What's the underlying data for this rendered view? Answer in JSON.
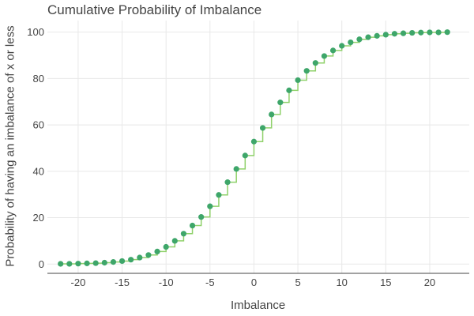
{
  "chart_data": {
    "type": "line",
    "title": "Cumulative Probability of Imbalance",
    "xlabel": "Imbalance",
    "ylabel": "Probability of having an imbalance of x or less",
    "xlim": [
      -23.5,
      24.5
    ],
    "ylim": [
      -4,
      105
    ],
    "x_ticks": [
      -20,
      -15,
      -10,
      -5,
      0,
      5,
      10,
      15,
      20
    ],
    "x_tick_labels": [
      "-20",
      "-15",
      "-10",
      "-5",
      "0",
      "5",
      "10",
      "15",
      "20"
    ],
    "y_ticks": [
      0,
      20,
      40,
      60,
      80,
      100
    ],
    "y_tick_labels": [
      "0",
      "20",
      "40",
      "60",
      "80",
      "100"
    ],
    "grid": true,
    "series": [
      {
        "style": "step",
        "color": "#8fd16a",
        "x": [
          -22,
          -21,
          -20,
          -19,
          -18,
          -17,
          -16,
          -15,
          -14,
          -13,
          -12,
          -11,
          -10,
          -9,
          -8,
          -7,
          -6,
          -5,
          -4,
          -3,
          -2,
          -1,
          0,
          1,
          2,
          3,
          4,
          5,
          6,
          7,
          8,
          9,
          10,
          11,
          12,
          13,
          14,
          15,
          16,
          17,
          18,
          19,
          20,
          21,
          22
        ],
        "values": [
          0.1,
          0.1,
          0.2,
          0.3,
          0.4,
          0.6,
          0.9,
          1.3,
          1.9,
          2.8,
          3.9,
          5.4,
          7.4,
          10.0,
          13.1,
          16.6,
          20.3,
          24.9,
          29.8,
          35.3,
          41.0,
          46.8,
          52.8,
          58.7,
          64.5,
          69.7,
          74.9,
          79.3,
          83.3,
          86.7,
          89.7,
          92.1,
          94.1,
          95.6,
          96.9,
          97.8,
          98.4,
          98.9,
          99.3,
          99.5,
          99.7,
          99.8,
          99.9,
          99.9,
          100.0
        ]
      },
      {
        "style": "markers",
        "color": "#3ea66a",
        "x": [
          -22,
          -21,
          -20,
          -19,
          -18,
          -17,
          -16,
          -15,
          -14,
          -13,
          -12,
          -11,
          -10,
          -9,
          -8,
          -7,
          -6,
          -5,
          -4,
          -3,
          -2,
          -1,
          0,
          1,
          2,
          3,
          4,
          5,
          6,
          7,
          8,
          9,
          10,
          11,
          12,
          13,
          14,
          15,
          16,
          17,
          18,
          19,
          20,
          21,
          22
        ],
        "values": [
          0.1,
          0.1,
          0.2,
          0.3,
          0.4,
          0.6,
          0.9,
          1.3,
          1.9,
          2.8,
          3.9,
          5.4,
          7.4,
          10.0,
          13.1,
          16.6,
          20.3,
          24.9,
          29.8,
          35.3,
          41.0,
          46.8,
          52.8,
          58.7,
          64.5,
          69.7,
          74.9,
          79.3,
          83.3,
          86.7,
          89.7,
          92.1,
          94.1,
          95.6,
          96.9,
          97.8,
          98.4,
          98.9,
          99.3,
          99.5,
          99.7,
          99.8,
          99.9,
          99.9,
          100.0
        ]
      }
    ]
  }
}
